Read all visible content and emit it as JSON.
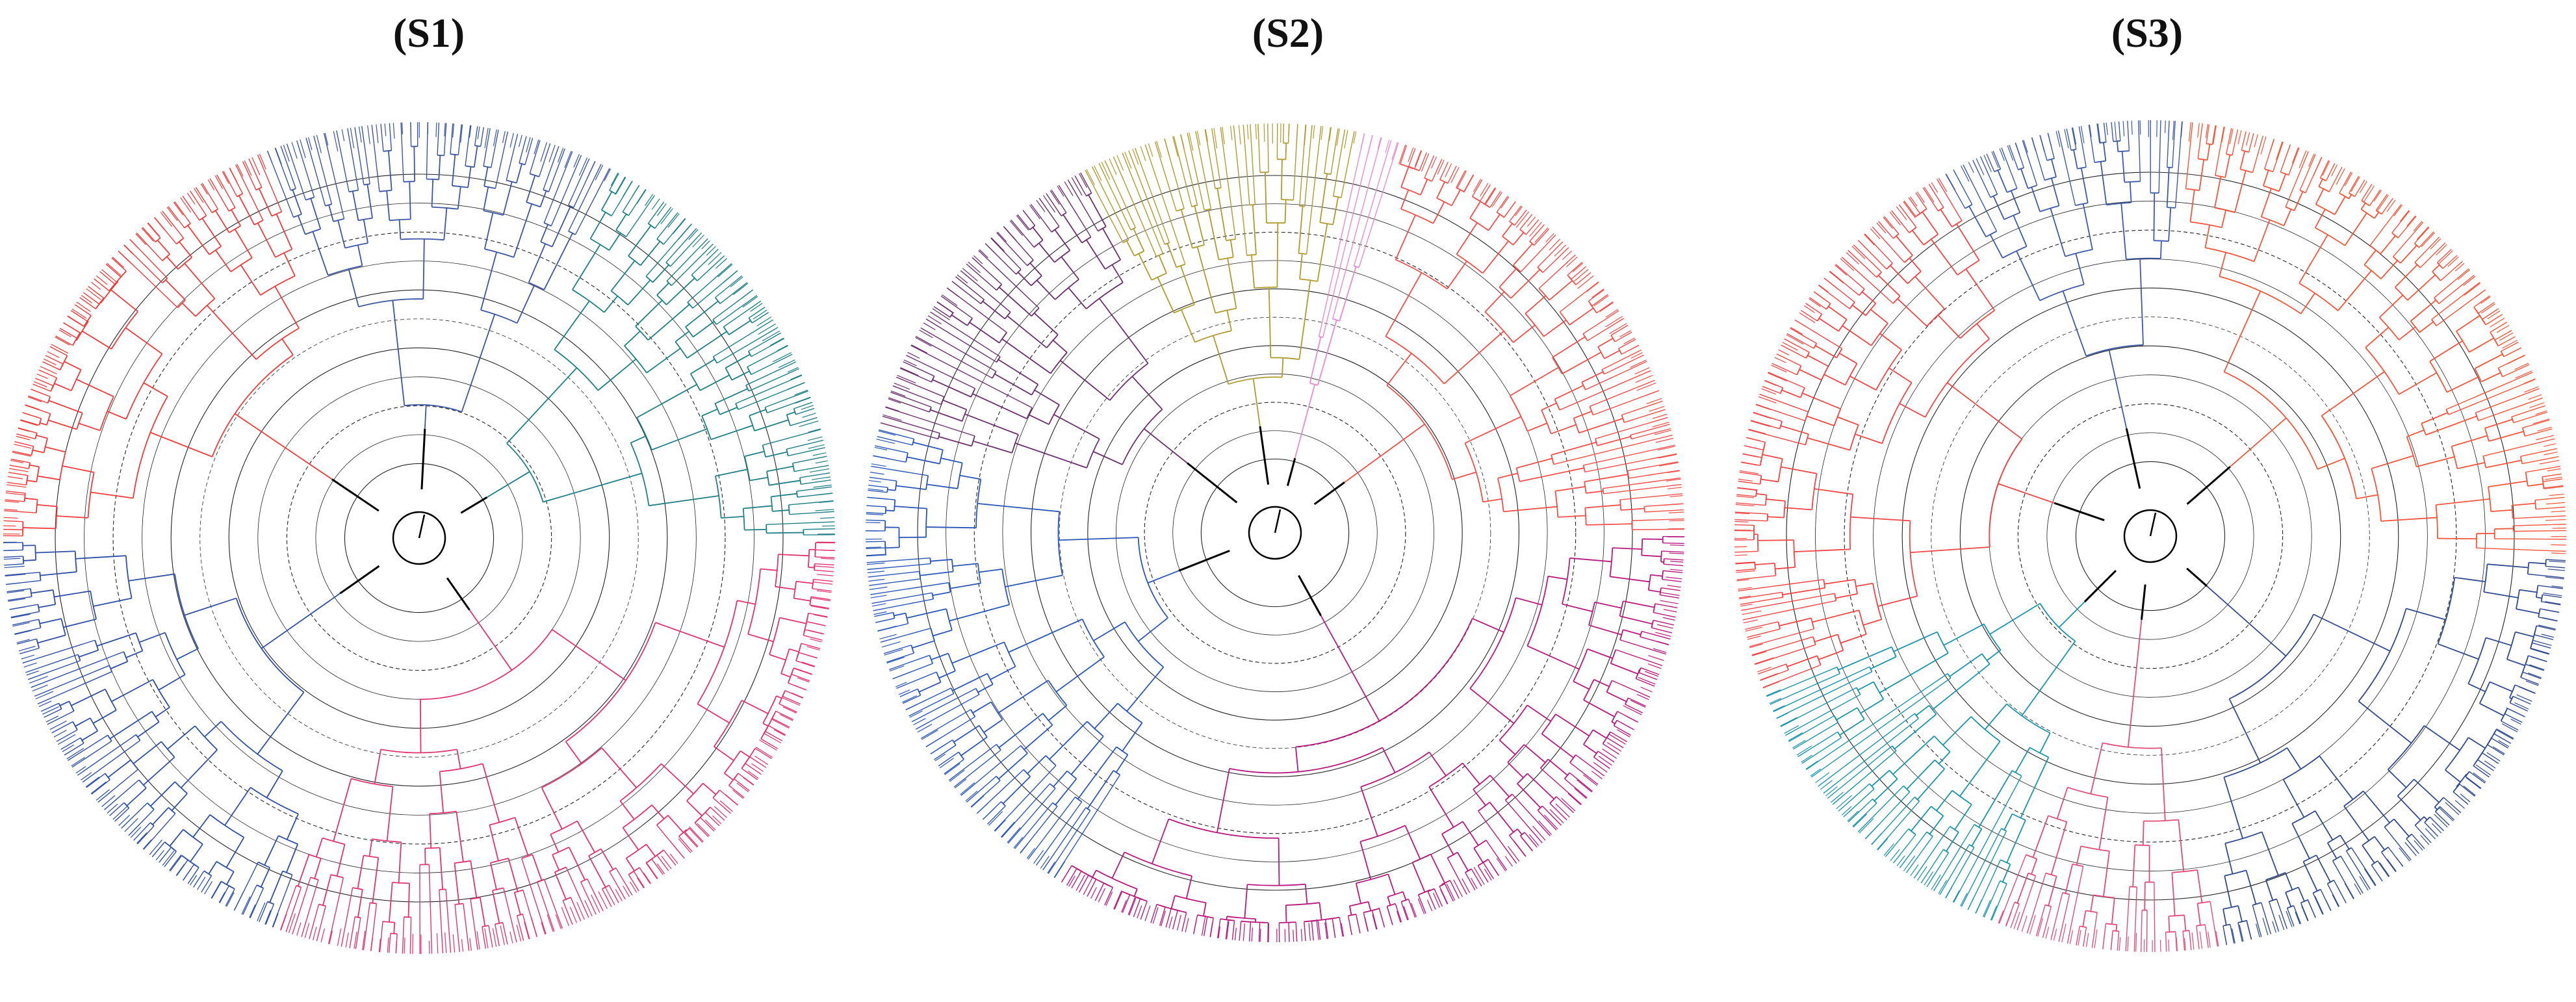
{
  "figure": {
    "panels": [
      {
        "id": "s1",
        "label": "(S1)",
        "clades": [
          {
            "name": "blue-top",
            "color": "#3a55a4",
            "start_deg": -112,
            "end_deg": -62,
            "leaves": 42
          },
          {
            "name": "teal",
            "color": "#1f7f86",
            "start_deg": -62,
            "end_deg": 0,
            "leaves": 55
          },
          {
            "name": "pink",
            "color": "#e0336f",
            "start_deg": 0,
            "end_deg": 110,
            "leaves": 95
          },
          {
            "name": "blue-left",
            "color": "#2e4fa6",
            "start_deg": 110,
            "end_deg": 180,
            "leaves": 60
          },
          {
            "name": "red",
            "color": "#ef3b3b",
            "start_deg": 180,
            "end_deg": 248,
            "leaves": 60
          }
        ]
      },
      {
        "id": "s2",
        "label": "(S2)",
        "clades": [
          {
            "name": "olive",
            "color": "#b09a2e",
            "start_deg": -118,
            "end_deg": -78,
            "leaves": 34
          },
          {
            "name": "pink-thin",
            "color": "#e98ad0",
            "start_deg": -78,
            "end_deg": -72,
            "leaves": 5
          },
          {
            "name": "salmon",
            "color": "#f04f4a",
            "start_deg": -72,
            "end_deg": 0,
            "leaves": 62
          },
          {
            "name": "magenta",
            "color": "#b8197e",
            "start_deg": 0,
            "end_deg": 122,
            "leaves": 104
          },
          {
            "name": "blue",
            "color": "#2a56b8",
            "start_deg": 122,
            "end_deg": 195,
            "leaves": 62
          },
          {
            "name": "purple",
            "color": "#6b2f6e",
            "start_deg": 195,
            "end_deg": 242,
            "leaves": 40
          }
        ]
      },
      {
        "id": "s3",
        "label": "(S3)",
        "clades": [
          {
            "name": "orange",
            "color": "#f2553a",
            "start_deg": -85,
            "end_deg": 3,
            "leaves": 75
          },
          {
            "name": "navy",
            "color": "#2f4a8f",
            "start_deg": 3,
            "end_deg": 80,
            "leaves": 66
          },
          {
            "name": "pink",
            "color": "#e14d76",
            "start_deg": 80,
            "end_deg": 112,
            "leaves": 28
          },
          {
            "name": "cyan",
            "color": "#1a93ad",
            "start_deg": 112,
            "end_deg": 158,
            "leaves": 40
          },
          {
            "name": "red",
            "color": "#f04545",
            "start_deg": 158,
            "end_deg": 240,
            "leaves": 70
          },
          {
            "name": "blue-top",
            "color": "#3c5aa8",
            "start_deg": 240,
            "end_deg": 275,
            "leaves": 30
          }
        ]
      }
    ]
  }
}
